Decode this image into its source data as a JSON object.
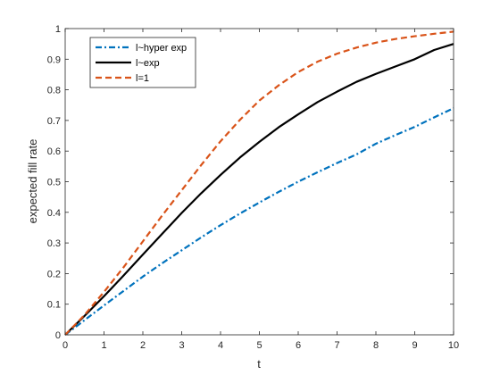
{
  "chart_data": {
    "type": "line",
    "title": "",
    "xlabel": "t",
    "ylabel": "expected fill rate",
    "xlim": [
      0,
      10
    ],
    "ylim": [
      0,
      1
    ],
    "xticks": [
      0,
      1,
      2,
      3,
      4,
      5,
      6,
      7,
      8,
      9,
      10
    ],
    "yticks": [
      0,
      0.1,
      0.2,
      0.3,
      0.4,
      0.5,
      0.6,
      0.7,
      0.8,
      0.9,
      1
    ],
    "ytick_labels": [
      "0",
      "0.1",
      "0.2",
      "0.3",
      "0.4",
      "0.5",
      "0.6",
      "0.7",
      "0.8",
      "0.9",
      "1"
    ],
    "grid": false,
    "legend_position": "top-left",
    "x": [
      0,
      0.5,
      1,
      1.5,
      2,
      2.5,
      3,
      3.5,
      4,
      4.5,
      5,
      5.5,
      6,
      6.5,
      7,
      7.5,
      8,
      8.5,
      9,
      9.5,
      10
    ],
    "series": [
      {
        "name": "l~hyper exp",
        "color": "#0072BD",
        "style": "dashdot",
        "values": [
          0,
          0.048,
          0.096,
          0.143,
          0.19,
          0.234,
          0.276,
          0.318,
          0.358,
          0.396,
          0.432,
          0.467,
          0.5,
          0.531,
          0.561,
          0.589,
          0.624,
          0.652,
          0.679,
          0.71,
          0.74
        ]
      },
      {
        "name": "l~exp",
        "color": "#000000",
        "style": "solid",
        "values": [
          0,
          0.062,
          0.126,
          0.193,
          0.262,
          0.33,
          0.398,
          0.462,
          0.522,
          0.579,
          0.63,
          0.678,
          0.72,
          0.76,
          0.794,
          0.826,
          0.852,
          0.876,
          0.9,
          0.93,
          0.95
        ]
      },
      {
        "name": "l=1",
        "color": "#D95319",
        "style": "dashed",
        "values": [
          0,
          0.065,
          0.14,
          0.22,
          0.305,
          0.39,
          0.472,
          0.554,
          0.632,
          0.702,
          0.765,
          0.815,
          0.858,
          0.892,
          0.918,
          0.938,
          0.954,
          0.966,
          0.975,
          0.983,
          0.99
        ]
      }
    ]
  }
}
